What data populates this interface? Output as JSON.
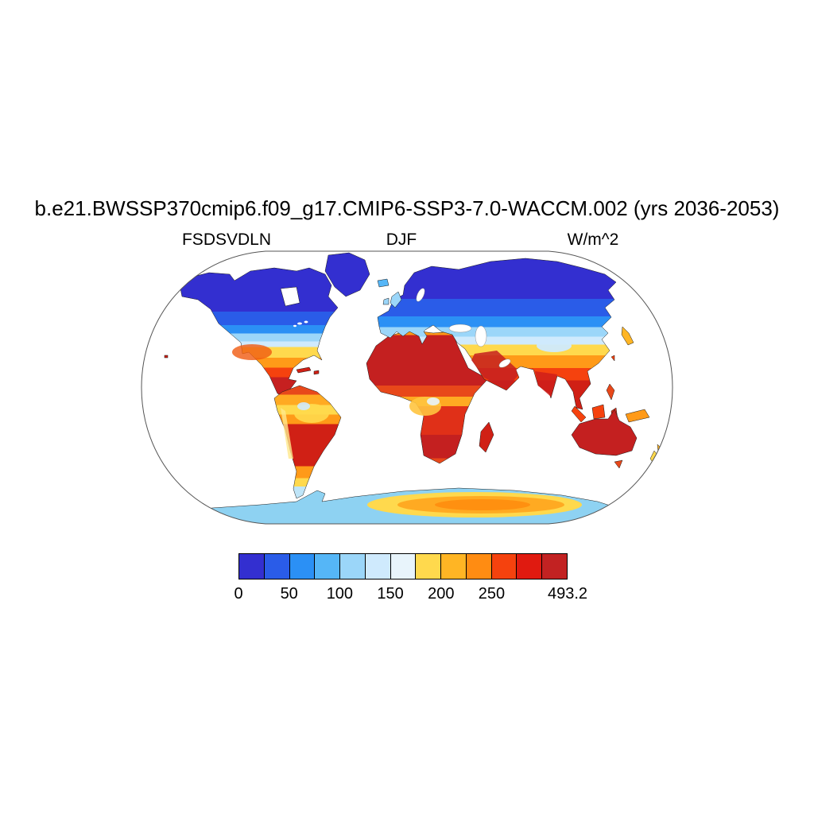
{
  "title": "b.e21.BWSSP370cmip6.f09_g17.CMIP6-SSP3-7.0-WACCM.002 (yrs 2036-2053)",
  "header": {
    "left": "FSDSVDLN",
    "center": "DJF",
    "right": "W/m^2"
  },
  "chart_data": {
    "type": "heatmap",
    "title": "b.e21.BWSSP370cmip6.f09_g17.CMIP6-SSP3-7.0-WACCM.002 (yrs 2036-2053)",
    "variable": "FSDSVDLN",
    "season": "DJF",
    "units": "W/m^2",
    "projection": "Robinson world map, land-only shading (ocean masked white)",
    "value_min": 0,
    "value_max": 493.2,
    "contour_interval": 25,
    "colorbar": {
      "colors": [
        "#332fd0",
        "#2a5ce8",
        "#2b90f5",
        "#55b6f7",
        "#9bd6f9",
        "#cfeafd",
        "#e8f4fb",
        "#ffd94d",
        "#ffb524",
        "#ff8c12",
        "#f5420e",
        "#e01a10",
        "#c22222"
      ],
      "tick_labels": [
        "0",
        "50",
        "100",
        "150",
        "200",
        "250",
        "493.2"
      ],
      "tick_cell_boundaries": [
        0,
        2,
        4,
        6,
        8,
        10,
        13
      ]
    },
    "regions": [
      {
        "name": "Greenland / Arctic Canada / Siberia",
        "approx_value_wm2": "0-50"
      },
      {
        "name": "Northern Europe / Scandinavia",
        "approx_value_wm2": "25-75"
      },
      {
        "name": "Mid-latitude North America and Eurasia",
        "approx_value_wm2": "75-150"
      },
      {
        "name": "Tibetan Plateau",
        "approx_value_wm2": "100-150"
      },
      {
        "name": "Southern US / Mediterranean / Central Asia",
        "approx_value_wm2": "150-250"
      },
      {
        "name": "Sahara, Arabia, India, Southeast Asia",
        "approx_value_wm2": "250-493"
      },
      {
        "name": "Mexico and Central America",
        "approx_value_wm2": "250-493"
      },
      {
        "name": "Amazon and Congo basins",
        "approx_value_wm2": "150-250"
      },
      {
        "name": "Southern Africa / subtropical South America",
        "approx_value_wm2": "250-493"
      },
      {
        "name": "Australia",
        "approx_value_wm2": "300-493"
      },
      {
        "name": "Patagonia / New Zealand",
        "approx_value_wm2": "100-200"
      },
      {
        "name": "Antarctic coast",
        "approx_value_wm2": "75-150"
      },
      {
        "name": "East Antarctic interior",
        "approx_value_wm2": "175-250"
      },
      {
        "name": "Oceans",
        "approx_value_wm2": "masked (white)"
      }
    ]
  }
}
